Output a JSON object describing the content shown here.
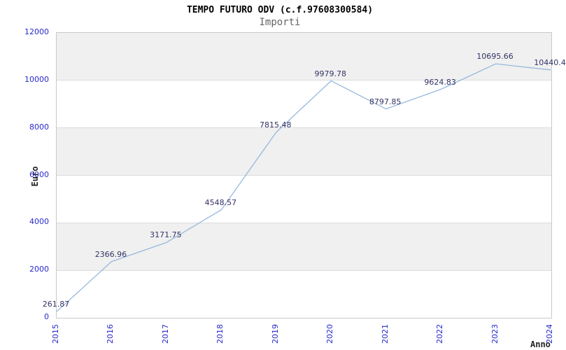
{
  "header": {
    "title": "TEMPO FUTURO ODV (c.f.97608300584)",
    "subtitle": "Importi"
  },
  "chart_data": {
    "type": "line",
    "title": "TEMPO FUTURO ODV (c.f.97608300584)",
    "subtitle": "Importi",
    "xlabel": "Anno",
    "ylabel": "Euro",
    "x": [
      2015,
      2016,
      2017,
      2018,
      2019,
      2020,
      2021,
      2022,
      2023,
      2024
    ],
    "values": [
      261.87,
      2366.96,
      3171.75,
      4548.57,
      7815.48,
      9979.78,
      8797.85,
      9624.83,
      10695.66,
      10440.4
    ],
    "point_labels": [
      "261.87",
      "2366.96",
      "3171.75",
      "4548.57",
      "7815.48",
      "9979.78",
      "8797.85",
      "9624.83",
      "10695.66",
      "10440.4"
    ],
    "ylim": [
      0,
      12000
    ],
    "y_ticks": [
      0,
      2000,
      4000,
      6000,
      8000,
      10000,
      12000
    ],
    "grid": "horizontal-alternating-bands",
    "legend": "none",
    "colors": {
      "line": "#8fb4dc",
      "band_gray": "#f0f0f0",
      "band_white": "#ffffff",
      "plot_border": "#c9c9c9",
      "tick_label": "#2929cc",
      "point_label": "#333366",
      "title": "#000000",
      "subtitle": "#666666",
      "axis_label": "#222222"
    }
  }
}
